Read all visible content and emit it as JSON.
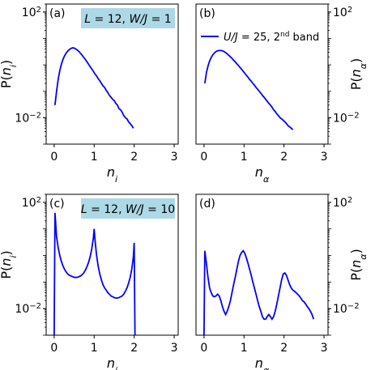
{
  "chart_data": [
    {
      "type": "line",
      "panel_label": "(a)",
      "xlabel": "n_i",
      "ylabel": "P(n_i)",
      "ylabel_side": "left",
      "yscale": "log",
      "xlim": [
        -0.2,
        3.1
      ],
      "ylim": [
        0.001,
        200
      ],
      "xticks": [
        0,
        1,
        2,
        3
      ],
      "yticks": [
        {
          "value": 100,
          "base": "10",
          "exp": "2"
        },
        {
          "value": 0.01,
          "base": "10",
          "exp": "−2"
        }
      ],
      "info_box": {
        "lhs1": "L",
        "rhs1": "12",
        "lhs2": "W/J",
        "rhs2": "1",
        "color": "#add8e6"
      },
      "series": [
        {
          "color": "#0000ff",
          "x": [
            0.02,
            0.06,
            0.1,
            0.14,
            0.18,
            0.22,
            0.26,
            0.3,
            0.34,
            0.38,
            0.42,
            0.46,
            0.5,
            0.54,
            0.58,
            0.62,
            0.66,
            0.7,
            0.74,
            0.78,
            0.82,
            0.86,
            0.9,
            0.94,
            0.98,
            1.02,
            1.06,
            1.1,
            1.14,
            1.18,
            1.22,
            1.26,
            1.3,
            1.34,
            1.38,
            1.42,
            1.46,
            1.5,
            1.54,
            1.58,
            1.62,
            1.66,
            1.7,
            1.74,
            1.78,
            1.82,
            1.86,
            1.9,
            1.94,
            1.98
          ],
          "y": [
            0.03,
            0.1,
            0.28,
            0.6,
            1.05,
            1.6,
            2.2,
            2.8,
            3.3,
            3.8,
            4.2,
            4.4,
            4.3,
            4.0,
            3.6,
            3.2,
            2.7,
            2.3,
            1.9,
            1.6,
            1.3,
            1.05,
            0.85,
            0.7,
            0.57,
            0.45,
            0.38,
            0.3,
            0.25,
            0.2,
            0.16,
            0.14,
            0.11,
            0.09,
            0.07,
            0.06,
            0.05,
            0.045,
            0.035,
            0.03,
            0.022,
            0.02,
            0.016,
            0.012,
            0.01,
            0.009,
            0.007,
            0.006,
            0.005,
            0.004
          ]
        }
      ]
    },
    {
      "type": "line",
      "panel_label": "(b)",
      "xlabel": "n_α",
      "ylabel": "P(n_α)",
      "ylabel_side": "right",
      "yscale": "log",
      "xlim": [
        -0.2,
        3.1
      ],
      "ylim": [
        0.001,
        200
      ],
      "xticks": [
        0,
        1,
        2,
        3
      ],
      "yticks": [
        {
          "value": 100,
          "base": "10",
          "exp": "2"
        },
        {
          "value": 0.01,
          "base": "10",
          "exp": "−2"
        }
      ],
      "legend": {
        "text_pre": "U/J = 25, 2",
        "sup": "nd",
        "text_post": " band",
        "position": "top-right"
      },
      "series": [
        {
          "color": "#0000ff",
          "x": [
            0.02,
            0.06,
            0.1,
            0.14,
            0.18,
            0.22,
            0.26,
            0.3,
            0.34,
            0.38,
            0.42,
            0.46,
            0.5,
            0.54,
            0.58,
            0.62,
            0.66,
            0.7,
            0.74,
            0.78,
            0.82,
            0.86,
            0.9,
            0.94,
            0.98,
            1.02,
            1.06,
            1.1,
            1.14,
            1.18,
            1.22,
            1.26,
            1.3,
            1.34,
            1.38,
            1.42,
            1.46,
            1.5,
            1.54,
            1.58,
            1.62,
            1.66,
            1.7,
            1.74,
            1.78,
            1.82,
            1.86,
            1.9,
            1.94,
            1.98,
            2.02,
            2.06,
            2.1,
            2.14,
            2.18,
            2.22
          ],
          "y": [
            0.2,
            0.5,
            0.9,
            1.4,
            1.9,
            2.4,
            2.8,
            3.2,
            3.4,
            3.5,
            3.5,
            3.4,
            3.2,
            2.9,
            2.6,
            2.3,
            2.0,
            1.75,
            1.5,
            1.3,
            1.1,
            0.95,
            0.8,
            0.68,
            0.57,
            0.48,
            0.4,
            0.34,
            0.28,
            0.24,
            0.2,
            0.17,
            0.14,
            0.12,
            0.1,
            0.085,
            0.07,
            0.06,
            0.05,
            0.042,
            0.035,
            0.03,
            0.025,
            0.02,
            0.017,
            0.014,
            0.012,
            0.01,
            0.009,
            0.008,
            0.007,
            0.006,
            0.005,
            0.0045,
            0.004,
            0.0035
          ]
        }
      ]
    },
    {
      "type": "line",
      "panel_label": "(c)",
      "xlabel": "n_i",
      "ylabel": "P(n_i)",
      "ylabel_side": "left",
      "yscale": "log",
      "xlim": [
        -0.2,
        3.1
      ],
      "ylim": [
        0.001,
        200
      ],
      "xticks": [
        0,
        1,
        2,
        3
      ],
      "yticks": [
        {
          "value": 100,
          "base": "10",
          "exp": "2"
        },
        {
          "value": 0.01,
          "base": "10",
          "exp": "−2"
        }
      ],
      "info_box": {
        "lhs1": "L",
        "rhs1": "12",
        "lhs2": "W/J",
        "rhs2": "10",
        "color": "#add8e6"
      },
      "series": [
        {
          "color": "#0000ff",
          "x": [
            0.0,
            0.02,
            0.06,
            0.1,
            0.14,
            0.18,
            0.22,
            0.26,
            0.3,
            0.34,
            0.38,
            0.42,
            0.46,
            0.5,
            0.54,
            0.58,
            0.62,
            0.66,
            0.7,
            0.74,
            0.78,
            0.82,
            0.86,
            0.9,
            0.94,
            0.98,
            1.0,
            1.02,
            1.06,
            1.1,
            1.14,
            1.18,
            1.22,
            1.26,
            1.3,
            1.34,
            1.38,
            1.42,
            1.46,
            1.5,
            1.54,
            1.58,
            1.62,
            1.66,
            1.7,
            1.74,
            1.78,
            1.82,
            1.86,
            1.9,
            1.94,
            1.98,
            2.0,
            2.02
          ],
          "y": [
            0.001,
            40,
            5,
            2.0,
            1.0,
            0.6,
            0.4,
            0.3,
            0.24,
            0.2,
            0.18,
            0.17,
            0.16,
            0.15,
            0.15,
            0.15,
            0.16,
            0.17,
            0.19,
            0.22,
            0.28,
            0.38,
            0.55,
            0.9,
            1.8,
            4.5,
            10,
            4.0,
            1.0,
            0.4,
            0.2,
            0.12,
            0.08,
            0.06,
            0.05,
            0.04,
            0.035,
            0.03,
            0.028,
            0.026,
            0.025,
            0.025,
            0.026,
            0.028,
            0.03,
            0.035,
            0.045,
            0.06,
            0.09,
            0.15,
            0.3,
            0.9,
            3,
            0.001
          ]
        }
      ]
    },
    {
      "type": "line",
      "panel_label": "(d)",
      "xlabel": "n_α",
      "ylabel": "P(n_α)",
      "ylabel_side": "right",
      "yscale": "log",
      "xlim": [
        -0.2,
        3.1
      ],
      "ylim": [
        0.001,
        200
      ],
      "xticks": [
        0,
        1,
        2,
        3
      ],
      "yticks": [
        {
          "value": 100,
          "base": "10",
          "exp": "2"
        },
        {
          "value": 0.01,
          "base": "10",
          "exp": "−2"
        }
      ],
      "series": [
        {
          "color": "#0000ff",
          "x": [
            0.0,
            0.02,
            0.06,
            0.1,
            0.14,
            0.18,
            0.22,
            0.26,
            0.3,
            0.34,
            0.38,
            0.42,
            0.46,
            0.5,
            0.54,
            0.58,
            0.62,
            0.66,
            0.7,
            0.74,
            0.78,
            0.82,
            0.86,
            0.9,
            0.94,
            0.98,
            1.02,
            1.06,
            1.1,
            1.14,
            1.18,
            1.22,
            1.26,
            1.3,
            1.34,
            1.38,
            1.42,
            1.46,
            1.5,
            1.54,
            1.58,
            1.62,
            1.66,
            1.7,
            1.74,
            1.78,
            1.82,
            1.86,
            1.9,
            1.94,
            1.98,
            2.02,
            2.06,
            2.1,
            2.14,
            2.18,
            2.22,
            2.26,
            2.3,
            2.34,
            2.38,
            2.42,
            2.46,
            2.5,
            2.54,
            2.58,
            2.62,
            2.66,
            2.7,
            2.74
          ],
          "y": [
            0.001,
            1.5,
            0.5,
            0.15,
            0.06,
            0.04,
            0.03,
            0.028,
            0.03,
            0.035,
            0.03,
            0.02,
            0.012,
            0.008,
            0.006,
            0.008,
            0.012,
            0.02,
            0.04,
            0.08,
            0.15,
            0.3,
            0.6,
            1.0,
            1.3,
            1.5,
            1.2,
            0.8,
            0.5,
            0.3,
            0.18,
            0.1,
            0.06,
            0.035,
            0.02,
            0.012,
            0.008,
            0.005,
            0.004,
            0.004,
            0.005,
            0.006,
            0.005,
            0.004,
            0.005,
            0.008,
            0.015,
            0.03,
            0.06,
            0.12,
            0.2,
            0.22,
            0.18,
            0.12,
            0.08,
            0.06,
            0.05,
            0.045,
            0.04,
            0.035,
            0.03,
            0.025,
            0.02,
            0.018,
            0.015,
            0.012,
            0.01,
            0.008,
            0.006,
            0.004
          ]
        }
      ]
    }
  ]
}
